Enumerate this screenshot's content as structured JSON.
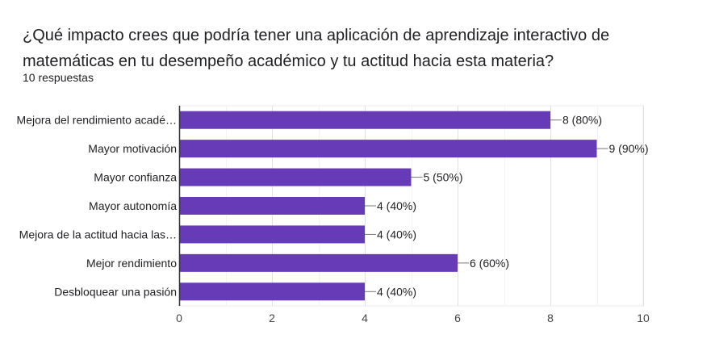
{
  "question": {
    "title": "¿Qué impacto crees que podría tener una aplicación de aprendizaje interactivo de matemáticas en tu desempeño académico y tu actitud hacia esta materia?",
    "responses": "10 respuestas"
  },
  "colors": {
    "bar": "#673ab7",
    "grid": "#ebebeb",
    "axis": "#333333",
    "text": "#202124"
  },
  "chart_data": {
    "type": "bar",
    "orientation": "horizontal",
    "categories": [
      "Mejora del rendimiento acadé…",
      "Mayor motivación",
      "Mayor confianza",
      "Mayor autonomía",
      "Mejora de la actitud hacia las…",
      "Mejor rendimiento",
      "Desbloquear una pasión"
    ],
    "values": [
      8,
      9,
      5,
      4,
      4,
      6,
      4
    ],
    "data_labels": [
      "8 (80%)",
      "9 (90%)",
      "5 (50%)",
      "4 (40%)",
      "4 (40%)",
      "6 (60%)",
      "4 (40%)"
    ],
    "xlim": [
      0,
      10
    ],
    "xticks": [
      0,
      2,
      4,
      6,
      8,
      10
    ],
    "grid": true,
    "legend": "none"
  }
}
